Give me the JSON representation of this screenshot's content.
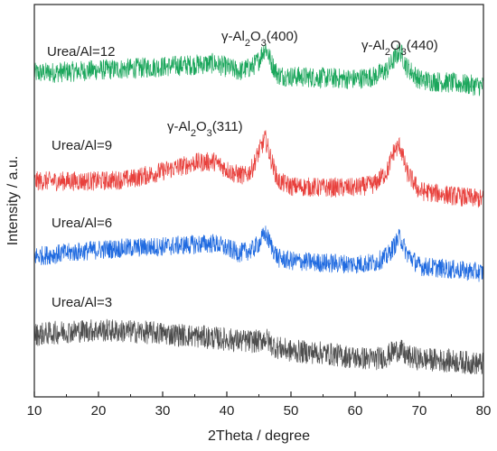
{
  "chart_data": {
    "type": "line",
    "xlabel": "2Theta / degree",
    "ylabel": "Intensity / a.u.",
    "xlim": [
      10,
      80
    ],
    "xticks": [
      10,
      20,
      30,
      40,
      50,
      60,
      70,
      80
    ],
    "grid": false,
    "legend": "none (series labeled inline on the left)",
    "y_ticks_labeled": false,
    "series": [
      {
        "name": "Urea/Al=12",
        "color": "#1aa65b",
        "x": [
          10,
          15,
          20,
          25,
          30,
          35,
          38,
          42,
          44,
          45,
          46,
          47,
          48,
          50,
          55,
          60,
          63,
          65,
          66,
          67,
          68,
          70,
          75,
          80
        ],
        "values": [
          4.95,
          4.97,
          5.0,
          5.02,
          5.05,
          5.08,
          5.1,
          4.98,
          5.05,
          5.15,
          5.35,
          5.1,
          4.92,
          4.9,
          4.88,
          4.86,
          4.9,
          5.0,
          5.15,
          5.3,
          5.05,
          4.85,
          4.8,
          4.75
        ]
      },
      {
        "name": "Urea/Al=9",
        "color": "#e8403c",
        "x": [
          10,
          15,
          20,
          25,
          30,
          35,
          38,
          41,
          43,
          44,
          45,
          46,
          47,
          48,
          50,
          55,
          60,
          63,
          65,
          66,
          67,
          68,
          70,
          75,
          80
        ],
        "values": [
          3.3,
          3.3,
          3.3,
          3.33,
          3.45,
          3.58,
          3.6,
          3.42,
          3.38,
          3.5,
          3.75,
          3.95,
          3.6,
          3.3,
          3.22,
          3.2,
          3.2,
          3.25,
          3.45,
          3.75,
          3.85,
          3.45,
          3.15,
          3.08,
          3.02
        ]
      },
      {
        "name": "Urea/Al=6",
        "color": "#1f6ae0",
        "x": [
          10,
          15,
          20,
          25,
          30,
          35,
          38,
          42,
          44,
          45,
          46,
          47,
          48,
          50,
          55,
          60,
          63,
          65,
          66,
          67,
          68,
          70,
          75,
          80
        ],
        "values": [
          2.15,
          2.2,
          2.25,
          2.28,
          2.3,
          2.33,
          2.35,
          2.2,
          2.25,
          2.35,
          2.5,
          2.3,
          2.12,
          2.08,
          2.05,
          2.03,
          2.05,
          2.15,
          2.3,
          2.45,
          2.2,
          2.0,
          1.95,
          1.9
        ]
      },
      {
        "name": "Urea/Al=3",
        "color": "#4d4d4d",
        "x": [
          10,
          15,
          20,
          25,
          30,
          35,
          40,
          43,
          45,
          46,
          47,
          48,
          50,
          55,
          60,
          63,
          65,
          66,
          67,
          68,
          70,
          75,
          80
        ],
        "values": [
          0.95,
          1.0,
          1.02,
          1.0,
          0.97,
          0.93,
          0.88,
          0.85,
          0.85,
          0.9,
          0.8,
          0.75,
          0.7,
          0.67,
          0.6,
          0.58,
          0.62,
          0.7,
          0.72,
          0.62,
          0.58,
          0.55,
          0.5
        ]
      }
    ],
    "ylim": [
      0,
      6.0
    ],
    "annotations": [
      {
        "label": "γ-Al2O3(400)",
        "x": 46,
        "y": 5.75
      },
      {
        "label": "γ-Al2O3(440)",
        "x": 67,
        "y": 5.75
      },
      {
        "label": "γ-Al2O3(311)",
        "x": 37,
        "y": 4.4
      }
    ]
  }
}
